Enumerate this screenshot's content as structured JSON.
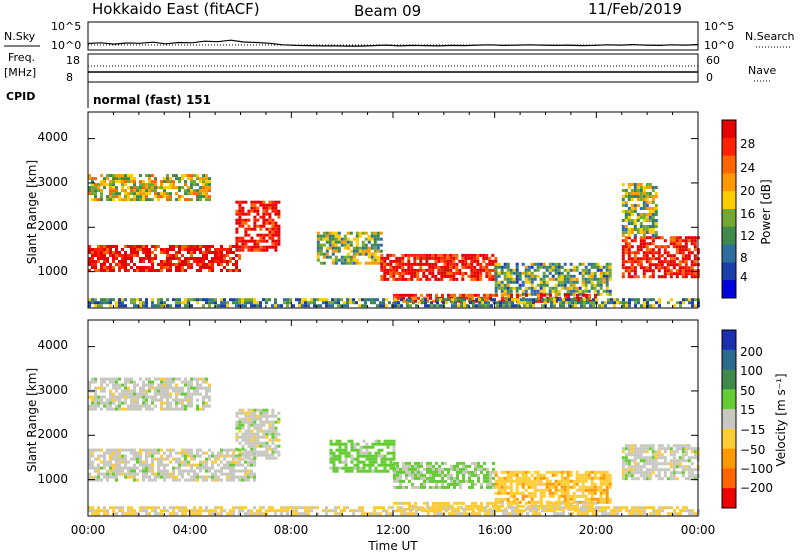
{
  "header": {
    "station": "Hokkaido East (fitACF)",
    "beam": "Beam 09",
    "date": "11/Feb/2019"
  },
  "top_panels": {
    "nsky_label": "N.Sky",
    "nsearch_label": "N.Search",
    "noise_ticks": [
      "10^5",
      "10^0"
    ],
    "freq_label": "Freq.",
    "freq_unit": "[MHz]",
    "freq_ticks": [
      "18",
      "8"
    ],
    "nave_label": "Nave",
    "nave_ticks": [
      "60",
      "0"
    ],
    "cpid_label": "CPID",
    "cpid_value": "normal (fast) 151"
  },
  "x_axis": {
    "ticks": [
      "00:00",
      "04:00",
      "08:00",
      "12:00",
      "16:00",
      "20:00",
      "00:00"
    ],
    "label": "Time UT"
  },
  "power_panel": {
    "ylabel": "Slant Range [km]",
    "yticks": [
      "4000",
      "3000",
      "2000",
      "1000"
    ],
    "colorbar_title": "Power [dB]",
    "colorbar_ticks": [
      "28",
      "24",
      "20",
      "16",
      "12",
      "8",
      "4"
    ],
    "colors": [
      "#0000dd",
      "#1a3fa8",
      "#2e6e9e",
      "#3d8a4a",
      "#72a832",
      "#ffcc00",
      "#ff9900",
      "#ff6600",
      "#ff2200",
      "#e60000"
    ]
  },
  "velocity_panel": {
    "ylabel": "Slant Range [km]",
    "yticks": [
      "4000",
      "3000",
      "2000",
      "1000"
    ],
    "colorbar_title": "Velocity [m s⁻¹]",
    "colorbar_ticks": [
      "200",
      "100",
      "50",
      "15",
      "−15",
      "−50",
      "−100",
      "−200"
    ],
    "colors": [
      "#1a2fb0",
      "#2a6a8a",
      "#3d8a4a",
      "#66cc33",
      "#c8c8c0",
      "#ffcc33",
      "#ff9900",
      "#ff6600",
      "#ee0000"
    ]
  },
  "chart_data": {
    "type": "heatmap",
    "x": {
      "unit": "hours UT",
      "range": [
        0,
        24
      ]
    },
    "y": {
      "unit": "km",
      "range": [
        180,
        4600
      ]
    },
    "power_echo_regions": [
      {
        "t": [
          0.0,
          6.0
        ],
        "range_km": [
          1000,
          1600
        ],
        "power_db": 28
      },
      {
        "t": [
          0.0,
          4.8
        ],
        "range_km": [
          2600,
          3200
        ],
        "power_db": 16
      },
      {
        "t": [
          5.8,
          7.5
        ],
        "range_km": [
          1500,
          2600
        ],
        "power_db": 28
      },
      {
        "t": [
          9.0,
          11.5
        ],
        "range_km": [
          1200,
          1900
        ],
        "power_db": 14
      },
      {
        "t": [
          11.5,
          16.0
        ],
        "range_km": [
          800,
          1400
        ],
        "power_db": 28
      },
      {
        "t": [
          16.0,
          20.5
        ],
        "range_km": [
          500,
          1200
        ],
        "power_db": 12
      },
      {
        "t": [
          12.0,
          20.0
        ],
        "range_km": [
          300,
          500
        ],
        "power_db": 26
      },
      {
        "t": [
          21.0,
          24.0
        ],
        "range_km": [
          900,
          1800
        ],
        "power_db": 28
      },
      {
        "t": [
          21.0,
          22.3
        ],
        "range_km": [
          1800,
          3000
        ],
        "power_db": 14
      },
      {
        "t": [
          0.0,
          24.0
        ],
        "range_km": [
          200,
          400
        ],
        "power_db": 10
      }
    ],
    "velocity_echo_regions": [
      {
        "t": [
          0.0,
          6.5
        ],
        "range_km": [
          1000,
          1700
        ],
        "velocity_ms": 0
      },
      {
        "t": [
          0.0,
          4.8
        ],
        "range_km": [
          2600,
          3300
        ],
        "velocity_ms": 0
      },
      {
        "t": [
          5.8,
          7.5
        ],
        "range_km": [
          1500,
          2600
        ],
        "velocity_ms": 0
      },
      {
        "t": [
          9.5,
          12.0
        ],
        "range_km": [
          1200,
          1900
        ],
        "velocity_ms": 30
      },
      {
        "t": [
          12.0,
          16.0
        ],
        "range_km": [
          800,
          1400
        ],
        "velocity_ms": 20
      },
      {
        "t": [
          16.0,
          20.5
        ],
        "range_km": [
          500,
          1200
        ],
        "velocity_ms": -40
      },
      {
        "t": [
          12.0,
          20.0
        ],
        "range_km": [
          300,
          500
        ],
        "velocity_ms": -30
      },
      {
        "t": [
          21.0,
          24.0
        ],
        "range_km": [
          1000,
          1800
        ],
        "velocity_ms": 0
      },
      {
        "t": [
          0.0,
          24.0
        ],
        "range_km": [
          200,
          400
        ],
        "velocity_ms": -20
      }
    ],
    "nsky_series": [
      2.1,
      2.4,
      1.9,
      2.3,
      2.2,
      2.6,
      2.0,
      2.5,
      2.4,
      3.0,
      2.8,
      3.4,
      2.7,
      2.5,
      2.2,
      1.6,
      1.4,
      1.3,
      1.2,
      1.2,
      1.1,
      1.1,
      1.3,
      1.5,
      1.2,
      1.4,
      1.3,
      1.2,
      1.4,
      1.3,
      1.5,
      1.6,
      1.4,
      1.5,
      1.6,
      1.5,
      1.4,
      1.5,
      1.3,
      1.4,
      1.6,
      1.5,
      1.7,
      1.5,
      1.4,
      1.6,
      1.5,
      1.7
    ]
  }
}
